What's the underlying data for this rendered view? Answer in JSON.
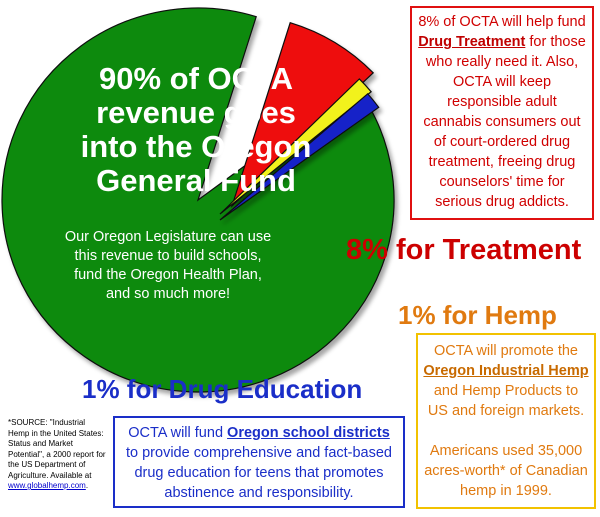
{
  "chart_data": {
    "type": "pie",
    "slices": [
      {
        "label": "90% of OCTA revenue goes into the Oregon General Fund",
        "value": 90,
        "color": "#0f8a0f"
      },
      {
        "label": "8% for Treatment",
        "value": 8,
        "color": "#ee1111"
      },
      {
        "label": "1% for Hemp",
        "value": 1,
        "color": "#f2f21a"
      },
      {
        "label": "1% for Drug Education",
        "value": 1,
        "color": "#1522c8"
      }
    ]
  },
  "general_fund": {
    "title": "90% of OCTA revenue goes into the Oregon General Fund",
    "body": "Our Oregon Legislature can use this revenue to build schools, fund the Oregon Health Plan, and so much more!"
  },
  "treatment": {
    "label": "8% for Treatment",
    "box_pre": "8% of OCTA will help fund ",
    "box_link": "Drug Treatment",
    "box_post": " for those who really need it. Also, OCTA will keep responsible adult cannabis consumers out of court-ordered drug treatment, freeing drug counselors' time for serious drug addicts."
  },
  "hemp": {
    "label": "1% for Hemp",
    "box_pre": "OCTA will promote the ",
    "box_link": "Oregon Industrial Hemp",
    "box_post": " and Hemp Products to US and foreign markets.",
    "box_extra": "Americans used 35,000 acres-worth* of Canadian hemp in 1999."
  },
  "education": {
    "label": "1% for Drug Education",
    "box_pre": "OCTA will fund ",
    "box_link": "Oregon school districts",
    "box_post": " to provide comprehensive and fact-based drug education for teens that promotes abstinence and responsibility."
  },
  "source": {
    "text": "*SOURCE: \"Industrial Hemp in the United States: Status and Market Potential\", a 2000 report for the US Department of Agriculture.  Available at",
    "link": "www.globalhemp.com",
    "end": "."
  },
  "colors": {
    "green": "#0f8a0f",
    "red": "#ee1111",
    "yellow": "#f2f21a",
    "blue": "#1522c8",
    "orange": "#e07a10",
    "label_blue": "#1a2ec8"
  }
}
